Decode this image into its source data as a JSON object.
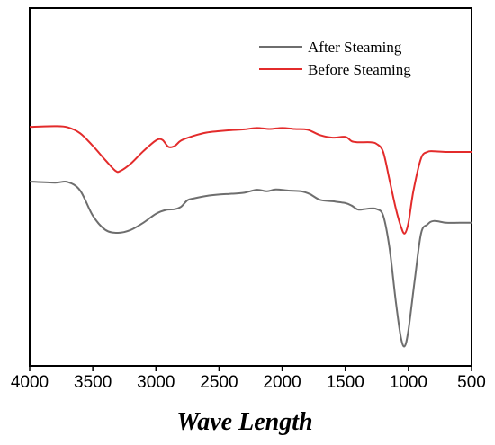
{
  "chart_data": {
    "type": "line",
    "title": "",
    "xlabel": "Wave Length",
    "ylabel": "",
    "x_reversed": true,
    "xlim": [
      4000,
      500
    ],
    "ylim": [
      0,
      1
    ],
    "x_ticks": [
      "4000",
      "3500",
      "3000",
      "2500",
      "2000",
      "1500",
      "1000",
      "500"
    ],
    "y_ticks_shown": false,
    "grid": false,
    "legend_position": "top-right",
    "series": [
      {
        "name": "After Steaming",
        "color": "#6e6e6e",
        "points": [
          [
            4000,
            0.515
          ],
          [
            3800,
            0.512
          ],
          [
            3700,
            0.514
          ],
          [
            3600,
            0.49
          ],
          [
            3500,
            0.42
          ],
          [
            3400,
            0.38
          ],
          [
            3300,
            0.372
          ],
          [
            3200,
            0.38
          ],
          [
            3100,
            0.4
          ],
          [
            3000,
            0.425
          ],
          [
            2920,
            0.436
          ],
          [
            2850,
            0.438
          ],
          [
            2800,
            0.445
          ],
          [
            2750,
            0.463
          ],
          [
            2700,
            0.468
          ],
          [
            2600,
            0.475
          ],
          [
            2500,
            0.479
          ],
          [
            2400,
            0.481
          ],
          [
            2300,
            0.484
          ],
          [
            2200,
            0.492
          ],
          [
            2120,
            0.488
          ],
          [
            2050,
            0.493
          ],
          [
            1950,
            0.49
          ],
          [
            1850,
            0.488
          ],
          [
            1780,
            0.48
          ],
          [
            1700,
            0.464
          ],
          [
            1600,
            0.46
          ],
          [
            1500,
            0.455
          ],
          [
            1450,
            0.448
          ],
          [
            1400,
            0.437
          ],
          [
            1350,
            0.438
          ],
          [
            1300,
            0.44
          ],
          [
            1250,
            0.438
          ],
          [
            1200,
            0.42
          ],
          [
            1150,
            0.33
          ],
          [
            1100,
            0.18
          ],
          [
            1060,
            0.08
          ],
          [
            1030,
            0.055
          ],
          [
            1000,
            0.1
          ],
          [
            950,
            0.24
          ],
          [
            900,
            0.37
          ],
          [
            850,
            0.395
          ],
          [
            800,
            0.405
          ],
          [
            700,
            0.4
          ],
          [
            600,
            0.4
          ],
          [
            500,
            0.4
          ]
        ]
      },
      {
        "name": "Before Steaming",
        "color": "#e32b2b",
        "points": [
          [
            4000,
            0.668
          ],
          [
            3800,
            0.67
          ],
          [
            3700,
            0.667
          ],
          [
            3600,
            0.65
          ],
          [
            3500,
            0.615
          ],
          [
            3400,
            0.575
          ],
          [
            3320,
            0.545
          ],
          [
            3280,
            0.545
          ],
          [
            3200,
            0.565
          ],
          [
            3100,
            0.6
          ],
          [
            3000,
            0.63
          ],
          [
            2950,
            0.632
          ],
          [
            2900,
            0.612
          ],
          [
            2850,
            0.615
          ],
          [
            2800,
            0.63
          ],
          [
            2700,
            0.643
          ],
          [
            2600,
            0.652
          ],
          [
            2500,
            0.656
          ],
          [
            2400,
            0.659
          ],
          [
            2300,
            0.661
          ],
          [
            2200,
            0.665
          ],
          [
            2100,
            0.662
          ],
          [
            2000,
            0.665
          ],
          [
            1900,
            0.662
          ],
          [
            1800,
            0.66
          ],
          [
            1700,
            0.645
          ],
          [
            1600,
            0.638
          ],
          [
            1500,
            0.64
          ],
          [
            1450,
            0.628
          ],
          [
            1400,
            0.625
          ],
          [
            1300,
            0.625
          ],
          [
            1250,
            0.62
          ],
          [
            1200,
            0.598
          ],
          [
            1150,
            0.52
          ],
          [
            1100,
            0.44
          ],
          [
            1060,
            0.39
          ],
          [
            1030,
            0.37
          ],
          [
            1000,
            0.4
          ],
          [
            960,
            0.49
          ],
          [
            900,
            0.58
          ],
          [
            850,
            0.598
          ],
          [
            800,
            0.6
          ],
          [
            700,
            0.598
          ],
          [
            600,
            0.598
          ],
          [
            500,
            0.598
          ]
        ]
      }
    ]
  }
}
